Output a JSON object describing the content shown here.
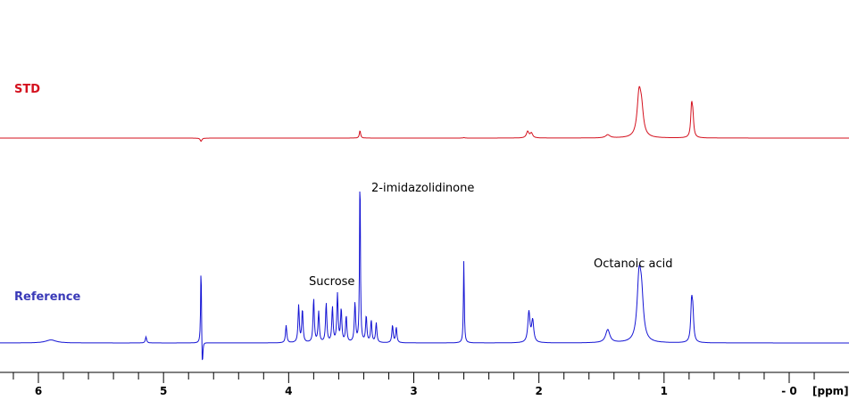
{
  "chart_data": {
    "type": "line",
    "x_axis": {
      "unit_label": "[ppm]",
      "range": [
        6.2,
        -0.2
      ],
      "reversed": true,
      "major_ticks": [
        6,
        5,
        4,
        3,
        2,
        1,
        0
      ],
      "major_tick_labels": [
        "6",
        "5",
        "4",
        "3",
        "2",
        "1",
        "- 0"
      ],
      "minor_step": 0.2
    },
    "grid": false,
    "series": [
      {
        "name": "STD",
        "color": "#d4111e",
        "peaks": [
          {
            "ppm": 4.7,
            "height": -0.06,
            "width": 0.008
          },
          {
            "ppm": 3.43,
            "height": 0.14,
            "width": 0.006
          },
          {
            "ppm": 2.6,
            "height": 0.01,
            "width": 0.006
          },
          {
            "ppm": 2.09,
            "height": 0.12,
            "width": 0.012
          },
          {
            "ppm": 2.06,
            "height": 0.09,
            "width": 0.012
          },
          {
            "ppm": 1.45,
            "height": 0.06,
            "width": 0.02
          },
          {
            "ppm": 1.2,
            "height": 0.75,
            "width": 0.018
          },
          {
            "ppm": 1.18,
            "height": 0.45,
            "width": 0.018
          },
          {
            "ppm": 0.78,
            "height": 0.55,
            "width": 0.008
          },
          {
            "ppm": 0.77,
            "height": 0.35,
            "width": 0.008
          }
        ]
      },
      {
        "name": "Reference",
        "color": "#1515d4",
        "peaks": [
          {
            "ppm": 5.9,
            "height": 0.014,
            "width": 0.05
          },
          {
            "ppm": 5.14,
            "height": 0.028,
            "width": 0.006
          },
          {
            "ppm": 4.7,
            "height": 0.38,
            "width": 0.004
          },
          {
            "ppm": 4.69,
            "height": -0.14,
            "width": 0.005
          },
          {
            "ppm": 4.02,
            "height": 0.08,
            "width": 0.006
          },
          {
            "ppm": 3.92,
            "height": 0.17,
            "width": 0.006
          },
          {
            "ppm": 3.89,
            "height": 0.15,
            "width": 0.006
          },
          {
            "ppm": 3.8,
            "height": 0.2,
            "width": 0.006
          },
          {
            "ppm": 3.76,
            "height": 0.14,
            "width": 0.006
          },
          {
            "ppm": 3.7,
            "height": 0.18,
            "width": 0.006
          },
          {
            "ppm": 3.65,
            "height": 0.16,
            "width": 0.006
          },
          {
            "ppm": 3.61,
            "height": 0.22,
            "width": 0.006
          },
          {
            "ppm": 3.58,
            "height": 0.15,
            "width": 0.006
          },
          {
            "ppm": 3.54,
            "height": 0.12,
            "width": 0.006
          },
          {
            "ppm": 3.47,
            "height": 0.18,
            "width": 0.006
          },
          {
            "ppm": 3.43,
            "height": 0.8,
            "width": 0.004
          },
          {
            "ppm": 3.38,
            "height": 0.12,
            "width": 0.006
          },
          {
            "ppm": 3.34,
            "height": 0.1,
            "width": 0.006
          },
          {
            "ppm": 3.3,
            "height": 0.09,
            "width": 0.006
          },
          {
            "ppm": 3.17,
            "height": 0.08,
            "width": 0.006
          },
          {
            "ppm": 3.14,
            "height": 0.07,
            "width": 0.006
          },
          {
            "ppm": 2.6,
            "height": 0.38,
            "width": 0.004
          },
          {
            "ppm": 2.08,
            "height": 0.14,
            "width": 0.01
          },
          {
            "ppm": 2.05,
            "height": 0.1,
            "width": 0.01
          },
          {
            "ppm": 1.45,
            "height": 0.06,
            "width": 0.02
          },
          {
            "ppm": 1.2,
            "height": 0.27,
            "width": 0.018
          },
          {
            "ppm": 1.18,
            "height": 0.18,
            "width": 0.018
          },
          {
            "ppm": 0.78,
            "height": 0.17,
            "width": 0.008
          },
          {
            "ppm": 0.77,
            "height": 0.12,
            "width": 0.008
          }
        ]
      }
    ],
    "annotations": [
      {
        "text": "2-imidazolidinone",
        "ppm": 3.43
      },
      {
        "text": "Sucrose",
        "ppm": 3.7
      },
      {
        "text": "Octanoic acid",
        "ppm": 1.2
      }
    ]
  }
}
